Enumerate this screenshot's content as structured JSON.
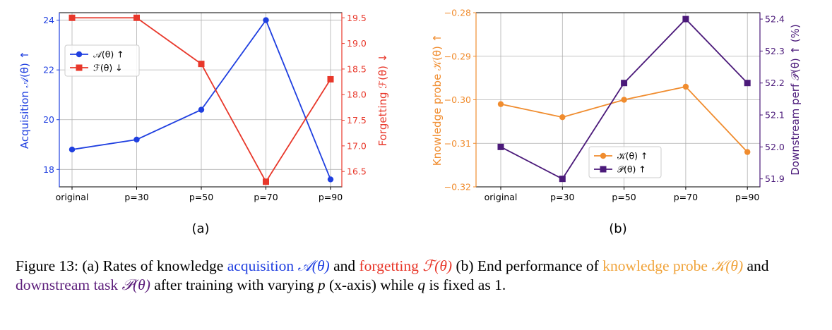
{
  "chart_data": [
    {
      "type": "line",
      "panel_label": "(a)",
      "categories": [
        "original",
        "p=30",
        "p=50",
        "p=70",
        "p=90"
      ],
      "y_left": {
        "label": "Acquisition 𝒜(θ) ↑",
        "range": [
          17.3,
          24.3
        ],
        "ticks": [
          "18",
          "20",
          "22",
          "24"
        ],
        "tick_values": [
          18,
          20,
          22,
          24
        ],
        "color": "#1f3fe0"
      },
      "y_right": {
        "label": "Forgetting ℱ(θ) ↓",
        "range": [
          16.2,
          19.6
        ],
        "ticks": [
          "16.5",
          "17.0",
          "17.5",
          "18.0",
          "18.5",
          "19.0",
          "19.5"
        ],
        "tick_values": [
          16.5,
          17.0,
          17.5,
          18.0,
          18.5,
          19.0,
          19.5
        ],
        "color": "#e8372a"
      },
      "series": [
        {
          "name": "𝒜(θ) ↑",
          "axis": "left",
          "marker": "circle",
          "color": "#1f3fe0",
          "values": [
            18.8,
            19.2,
            20.4,
            24.0,
            17.6
          ]
        },
        {
          "name": "ℱ(θ) ↓",
          "axis": "right",
          "marker": "square",
          "color": "#e8372a",
          "values": [
            19.5,
            19.5,
            18.6,
            16.3,
            18.3
          ]
        }
      ],
      "legend_position": "upper-left",
      "grid": true
    },
    {
      "type": "line",
      "panel_label": "(b)",
      "categories": [
        "original",
        "p=30",
        "p=50",
        "p=70",
        "p=90"
      ],
      "y_left": {
        "label": "Knowledge probe 𝒦(θ) ↑",
        "range": [
          -0.32,
          -0.28
        ],
        "ticks": [
          "−0.32",
          "−0.31",
          "−0.30",
          "−0.29",
          "−0.28"
        ],
        "tick_values": [
          -0.32,
          -0.31,
          -0.3,
          -0.29,
          -0.28
        ],
        "color": "#f08c2e"
      },
      "y_right": {
        "label": "Downstream perf 𝒫(θ) ↑ (%)",
        "range": [
          51.875,
          52.42
        ],
        "ticks": [
          "51.9",
          "52.0",
          "52.1",
          "52.2",
          "52.3",
          "52.4"
        ],
        "tick_values": [
          51.9,
          52.0,
          52.1,
          52.2,
          52.3,
          52.4
        ],
        "color": "#4b1a7a"
      },
      "series": [
        {
          "name": "𝒦(θ) ↑",
          "axis": "left",
          "marker": "circle",
          "color": "#f08c2e",
          "values": [
            -0.301,
            -0.304,
            -0.3,
            -0.297,
            -0.312
          ]
        },
        {
          "name": "𝒫(θ) ↑",
          "axis": "right",
          "marker": "square",
          "color": "#4b1a7a",
          "values": [
            52.0,
            51.9,
            52.2,
            52.4,
            52.2
          ]
        }
      ],
      "legend_position": "lower-center",
      "grid": true
    }
  ],
  "caption": {
    "p1": "Figure 13: (a) Rates of knowledge ",
    "acq": "acquisition",
    "acq_sym": "𝒜(θ)",
    "and": " and ",
    "forg": "forgetting",
    "forg_sym": "ℱ(θ)",
    "p2": " (b) End performance of ",
    "know": "knowledge probe",
    "know_sym": "𝒦(θ)",
    "and2": " and ",
    "down": "downstream task",
    "down_sym": "𝒫(θ)",
    "p3": " after training with varying ",
    "pvar": "p",
    "p4": " (x-axis) while ",
    "qvar": "q",
    "p5": " is fixed as 1."
  }
}
